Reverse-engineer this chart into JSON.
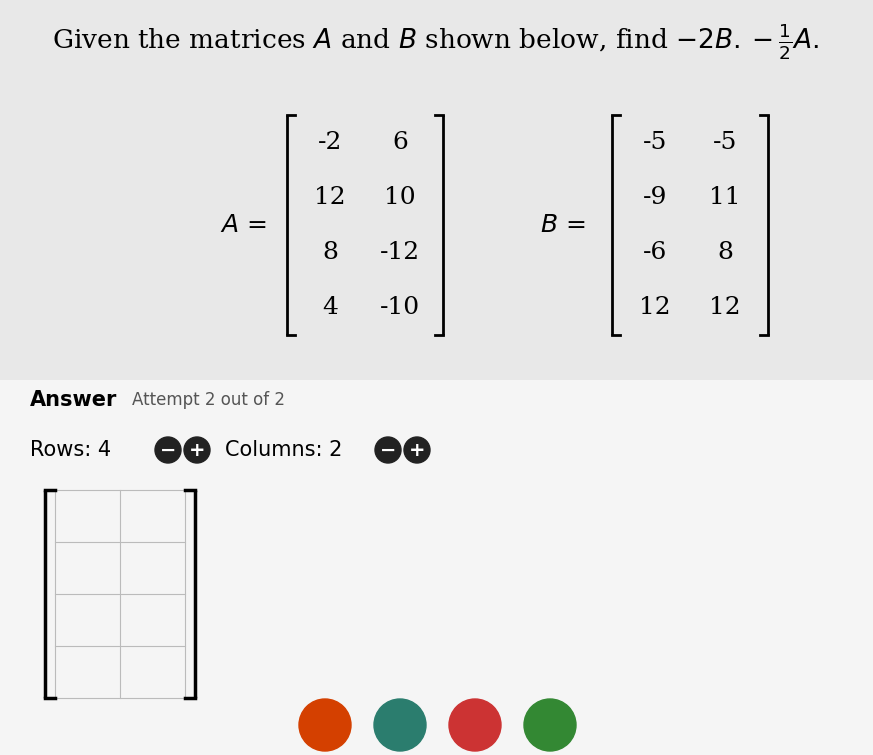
{
  "bg_color": "#e8e8e8",
  "white_bg": "#f0f0f0",
  "title_line1": "Given the matrices ",
  "title_line2": " and ",
  "title_line3": " shown below, find ",
  "A_matrix": [
    [
      -2,
      6
    ],
    [
      12,
      10
    ],
    [
      8,
      -12
    ],
    [
      4,
      -10
    ]
  ],
  "B_matrix": [
    [
      -5,
      -5
    ],
    [
      -9,
      11
    ],
    [
      -6,
      8
    ],
    [
      12,
      12
    ]
  ],
  "rows": 4,
  "cols": 2,
  "answer_bg": "#f5f5f5",
  "grid_color": "#bbbbbb",
  "btn_color": "#222222",
  "title_fontsize": 19,
  "matrix_fontsize": 18,
  "label_fontsize": 18,
  "answer_fontsize": 15,
  "rows_cols_fontsize": 15
}
